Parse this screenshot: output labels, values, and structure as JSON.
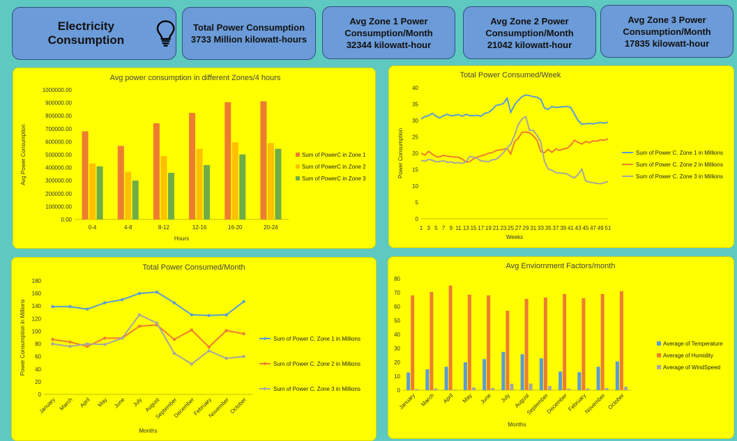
{
  "header": {
    "title": "Electricity Consumption",
    "kpis": [
      {
        "label": "Total Power Consumption",
        "value": "3733 Million kilowatt-hours"
      },
      {
        "label": "Avg Zone 1 Power Consumption/Month",
        "value": "32344 kilowatt-hour"
      },
      {
        "label": "Avg Zone 2 Power Consumption/Month",
        "value": "21042 kilowatt-hour"
      },
      {
        "label": "Avg Zone 3 Power Consumption/Month",
        "value": "17835 kilowatt-hour"
      }
    ]
  },
  "colors": {
    "zone1": "#ed7d31",
    "zone2": "#ffc000",
    "zone3": "#70ad47",
    "line1": "#5b9bd5",
    "line2": "#ed7d31",
    "line3": "#a5a5a5",
    "temp": "#5b9bd5",
    "hum": "#ed7d31",
    "wind": "#a5a5a5"
  },
  "chart_data": [
    {
      "type": "bar",
      "title": "Avg power consumption in different Zones/4 hours",
      "xlabel": "Hours",
      "ylabel": "Avg Power Consumption",
      "ylim": [
        0,
        1000000
      ],
      "yticks": [
        "0.00",
        "100000.00",
        "200000.00",
        "300000.00",
        "400000.00",
        "500000.00",
        "600000.00",
        "700000.00",
        "800000.00",
        "900000.00",
        "1000000.00"
      ],
      "categories": [
        "0-4",
        "4-8",
        "8-12",
        "12-16",
        "16-20",
        "20-24"
      ],
      "series": [
        {
          "name": "Sum of PowerC in Zone 1",
          "values": [
            680000,
            568000,
            742000,
            822000,
            905000,
            912000
          ]
        },
        {
          "name": "Sum of PowerC in Zone 2",
          "values": [
            432000,
            368000,
            490000,
            546000,
            596000,
            590000
          ]
        },
        {
          "name": "Sum of PowerC in Zone 3",
          "values": [
            410000,
            300000,
            360000,
            420000,
            502000,
            545000
          ]
        }
      ],
      "legend": "right"
    },
    {
      "type": "line",
      "title": "Total Power Consumed/Week",
      "xlabel": "Weeks",
      "ylabel": "Power Consumption",
      "ylim": [
        0,
        40
      ],
      "yticks": [
        "0",
        "5",
        "10",
        "15",
        "20",
        "25",
        "30",
        "35",
        "40"
      ],
      "xticks": [
        "1",
        "3",
        "5",
        "7",
        "9",
        "11",
        "13",
        "15",
        "17",
        "19",
        "21",
        "23",
        "25",
        "27",
        "29",
        "31",
        "33",
        "35",
        "37",
        "39",
        "41",
        "43",
        "45",
        "47",
        "49",
        "51"
      ],
      "series": [
        {
          "name": "Sum of Power C. Zone 1 in Millions",
          "values": [
            30.5,
            31.2,
            31.5,
            32.2,
            31.3,
            30.8,
            31.5,
            31.9,
            31.4,
            31.6,
            31.8,
            31.3,
            31.9,
            31.5,
            31.5,
            31.6,
            31.3,
            32.2,
            32.5,
            33.3,
            34.6,
            34.8,
            35.2,
            36.8,
            32.5,
            34.8,
            36.2,
            37.3,
            37.8,
            37.6,
            37.3,
            37.1,
            36.5,
            33.8,
            33.4,
            34.3,
            34.0,
            34.1,
            34.2,
            34.3,
            34.0,
            32.0,
            30.0,
            28.9,
            29.0,
            29.1,
            29.0,
            29.2,
            29.4,
            29.2,
            29.5
          ]
        },
        {
          "name": "Sum of Power C. Zone 2 in Millions",
          "values": [
            20.0,
            19.4,
            20.6,
            19.7,
            19.0,
            18.9,
            19.4,
            19.1,
            19.0,
            18.8,
            18.8,
            18.2,
            17.3,
            17.5,
            18.3,
            18.8,
            19.2,
            19.5,
            20.0,
            20.2,
            20.8,
            21.0,
            21.2,
            21.5,
            19.8,
            23.5,
            24.6,
            26.4,
            26.5,
            26.3,
            25.3,
            24.0,
            20.5,
            20.2,
            21.2,
            20.3,
            21.3,
            20.9,
            21.3,
            21.5,
            22.4,
            24.0,
            23.3,
            22.8,
            23.6,
            23.2,
            23.8,
            23.7,
            24.1,
            24.0,
            24.4
          ]
        },
        {
          "name": "Sum of Power C. Zone 3 in Millions",
          "values": [
            17.8,
            17.6,
            18.1,
            17.9,
            17.4,
            17.5,
            17.7,
            17.2,
            17.4,
            17.0,
            17.2,
            16.9,
            17.4,
            19.0,
            18.8,
            18.5,
            17.6,
            17.6,
            17.4,
            18.0,
            18.1,
            19.0,
            20.2,
            21.6,
            22.8,
            25.5,
            28.8,
            30.5,
            31.2,
            27.0,
            27.0,
            25.5,
            23.5,
            17.5,
            15.2,
            14.8,
            14.1,
            14.0,
            13.9,
            13.7,
            13.0,
            12.5,
            13.5,
            15.2,
            11.6,
            11.2,
            11.0,
            10.8,
            10.7,
            11.0,
            11.4
          ]
        }
      ],
      "legend": "right"
    },
    {
      "type": "line",
      "title": "Total Power Consumed/Month",
      "xlabel": "Months",
      "ylabel": "Power Consumption in Millions",
      "ylim": [
        0,
        180
      ],
      "yticks": [
        "0",
        "20",
        "40",
        "60",
        "80",
        "100",
        "120",
        "140",
        "160",
        "180"
      ],
      "categories": [
        "January",
        "March",
        "April",
        "May",
        "June",
        "July",
        "August",
        "September",
        "December",
        "February",
        "November",
        "October"
      ],
      "series": [
        {
          "name": "Sum of Power C. Zone 1 in Millions",
          "values": [
            139,
            139,
            135,
            145,
            150,
            160,
            162,
            145,
            126,
            125,
            126,
            147
          ]
        },
        {
          "name": "Sum of Power C. Zone 2 in Millions",
          "values": [
            87,
            83,
            76,
            89,
            89,
            108,
            110,
            87,
            102,
            75,
            101,
            96
          ]
        },
        {
          "name": "Sum of Power C. Zone 3 in Millions",
          "values": [
            80,
            76,
            80,
            79,
            89,
            126,
            113,
            65,
            48,
            69,
            57,
            60
          ]
        }
      ],
      "legend": "right"
    },
    {
      "type": "bar",
      "title": "Avg Enviornment Factors/month",
      "xlabel": "Months",
      "ylabel": "",
      "ylim": [
        0,
        80
      ],
      "yticks": [
        "0",
        "10",
        "20",
        "30",
        "40",
        "50",
        "60",
        "70",
        "80"
      ],
      "categories": [
        "January",
        "March",
        "April",
        "May",
        "June",
        "July",
        "August",
        "September",
        "December",
        "February",
        "November",
        "October"
      ],
      "series": [
        {
          "name": "Average of Temperature",
          "values": [
            12.7,
            14.9,
            16.8,
            20.0,
            22.3,
            27.4,
            25.8,
            22.9,
            13.3,
            12.9,
            16.8,
            20.6
          ]
        },
        {
          "name": "Average of Humidity",
          "values": [
            68.0,
            70.5,
            75.0,
            68.5,
            68.0,
            57.0,
            65.5,
            66.5,
            69.0,
            66.0,
            69.0,
            71.0
          ]
        },
        {
          "name": "Average of WindSpeed",
          "values": [
            0.8,
            1.2,
            0.4,
            2.0,
            1.5,
            4.6,
            4.7,
            3.0,
            1.1,
            1.2,
            1.5,
            2.5
          ]
        }
      ],
      "legend": "right"
    }
  ]
}
